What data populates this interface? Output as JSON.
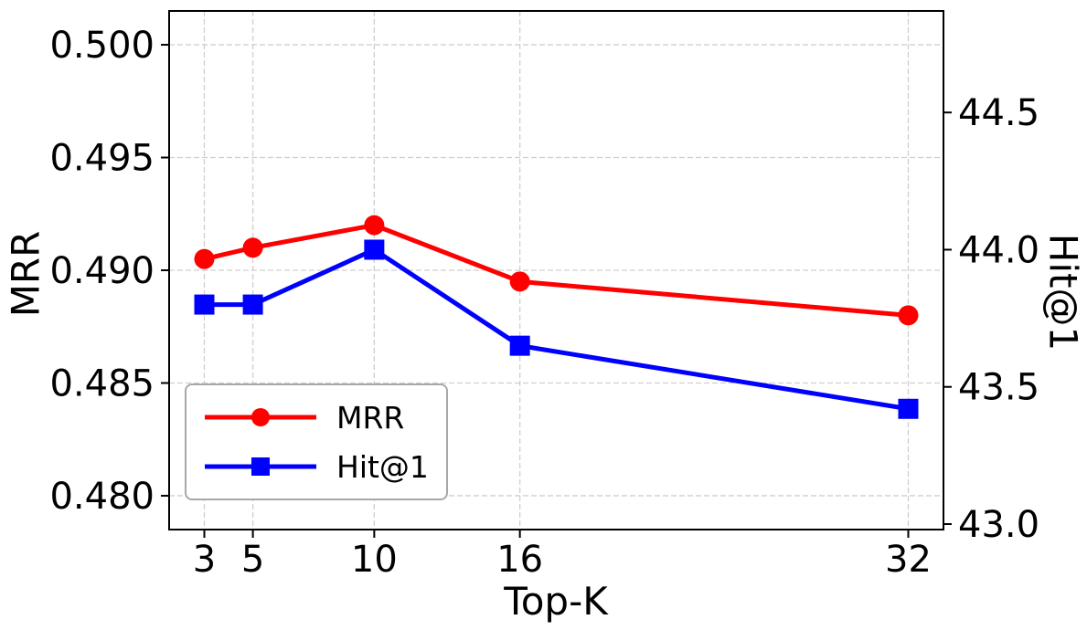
{
  "chart_data": {
    "type": "line",
    "x": [
      3,
      5,
      10,
      16,
      32
    ],
    "x_tick_labels": [
      "3",
      "5",
      "10",
      "16",
      "32"
    ],
    "series": [
      {
        "name": "MRR",
        "axis": "left",
        "color": "#ff0000",
        "marker": "circle",
        "values": [
          0.4905,
          0.491,
          0.492,
          0.4895,
          0.488
        ]
      },
      {
        "name": "Hit@1",
        "axis": "right",
        "color": "#0000ff",
        "marker": "square",
        "values": [
          43.8,
          43.8,
          44.0,
          43.65,
          43.42
        ]
      }
    ],
    "xlabel": "Top-K",
    "ylabel_left": "MRR",
    "ylabel_right": "Hit@1",
    "xlim": [
      1.55,
      33.45
    ],
    "ylim_left": [
      0.4785,
      0.5015
    ],
    "ylim_right": [
      42.98,
      44.87
    ],
    "yticks_left": [
      0.48,
      0.485,
      0.49,
      0.495,
      0.5
    ],
    "ytick_labels_left": [
      "0.480",
      "0.485",
      "0.490",
      "0.495",
      "0.500"
    ],
    "yticks_right": [
      43.0,
      43.5,
      44.0,
      44.5
    ],
    "ytick_labels_right": [
      "43.0",
      "43.5",
      "44.0",
      "44.5"
    ],
    "grid": true,
    "legend_position": "lower-left"
  }
}
